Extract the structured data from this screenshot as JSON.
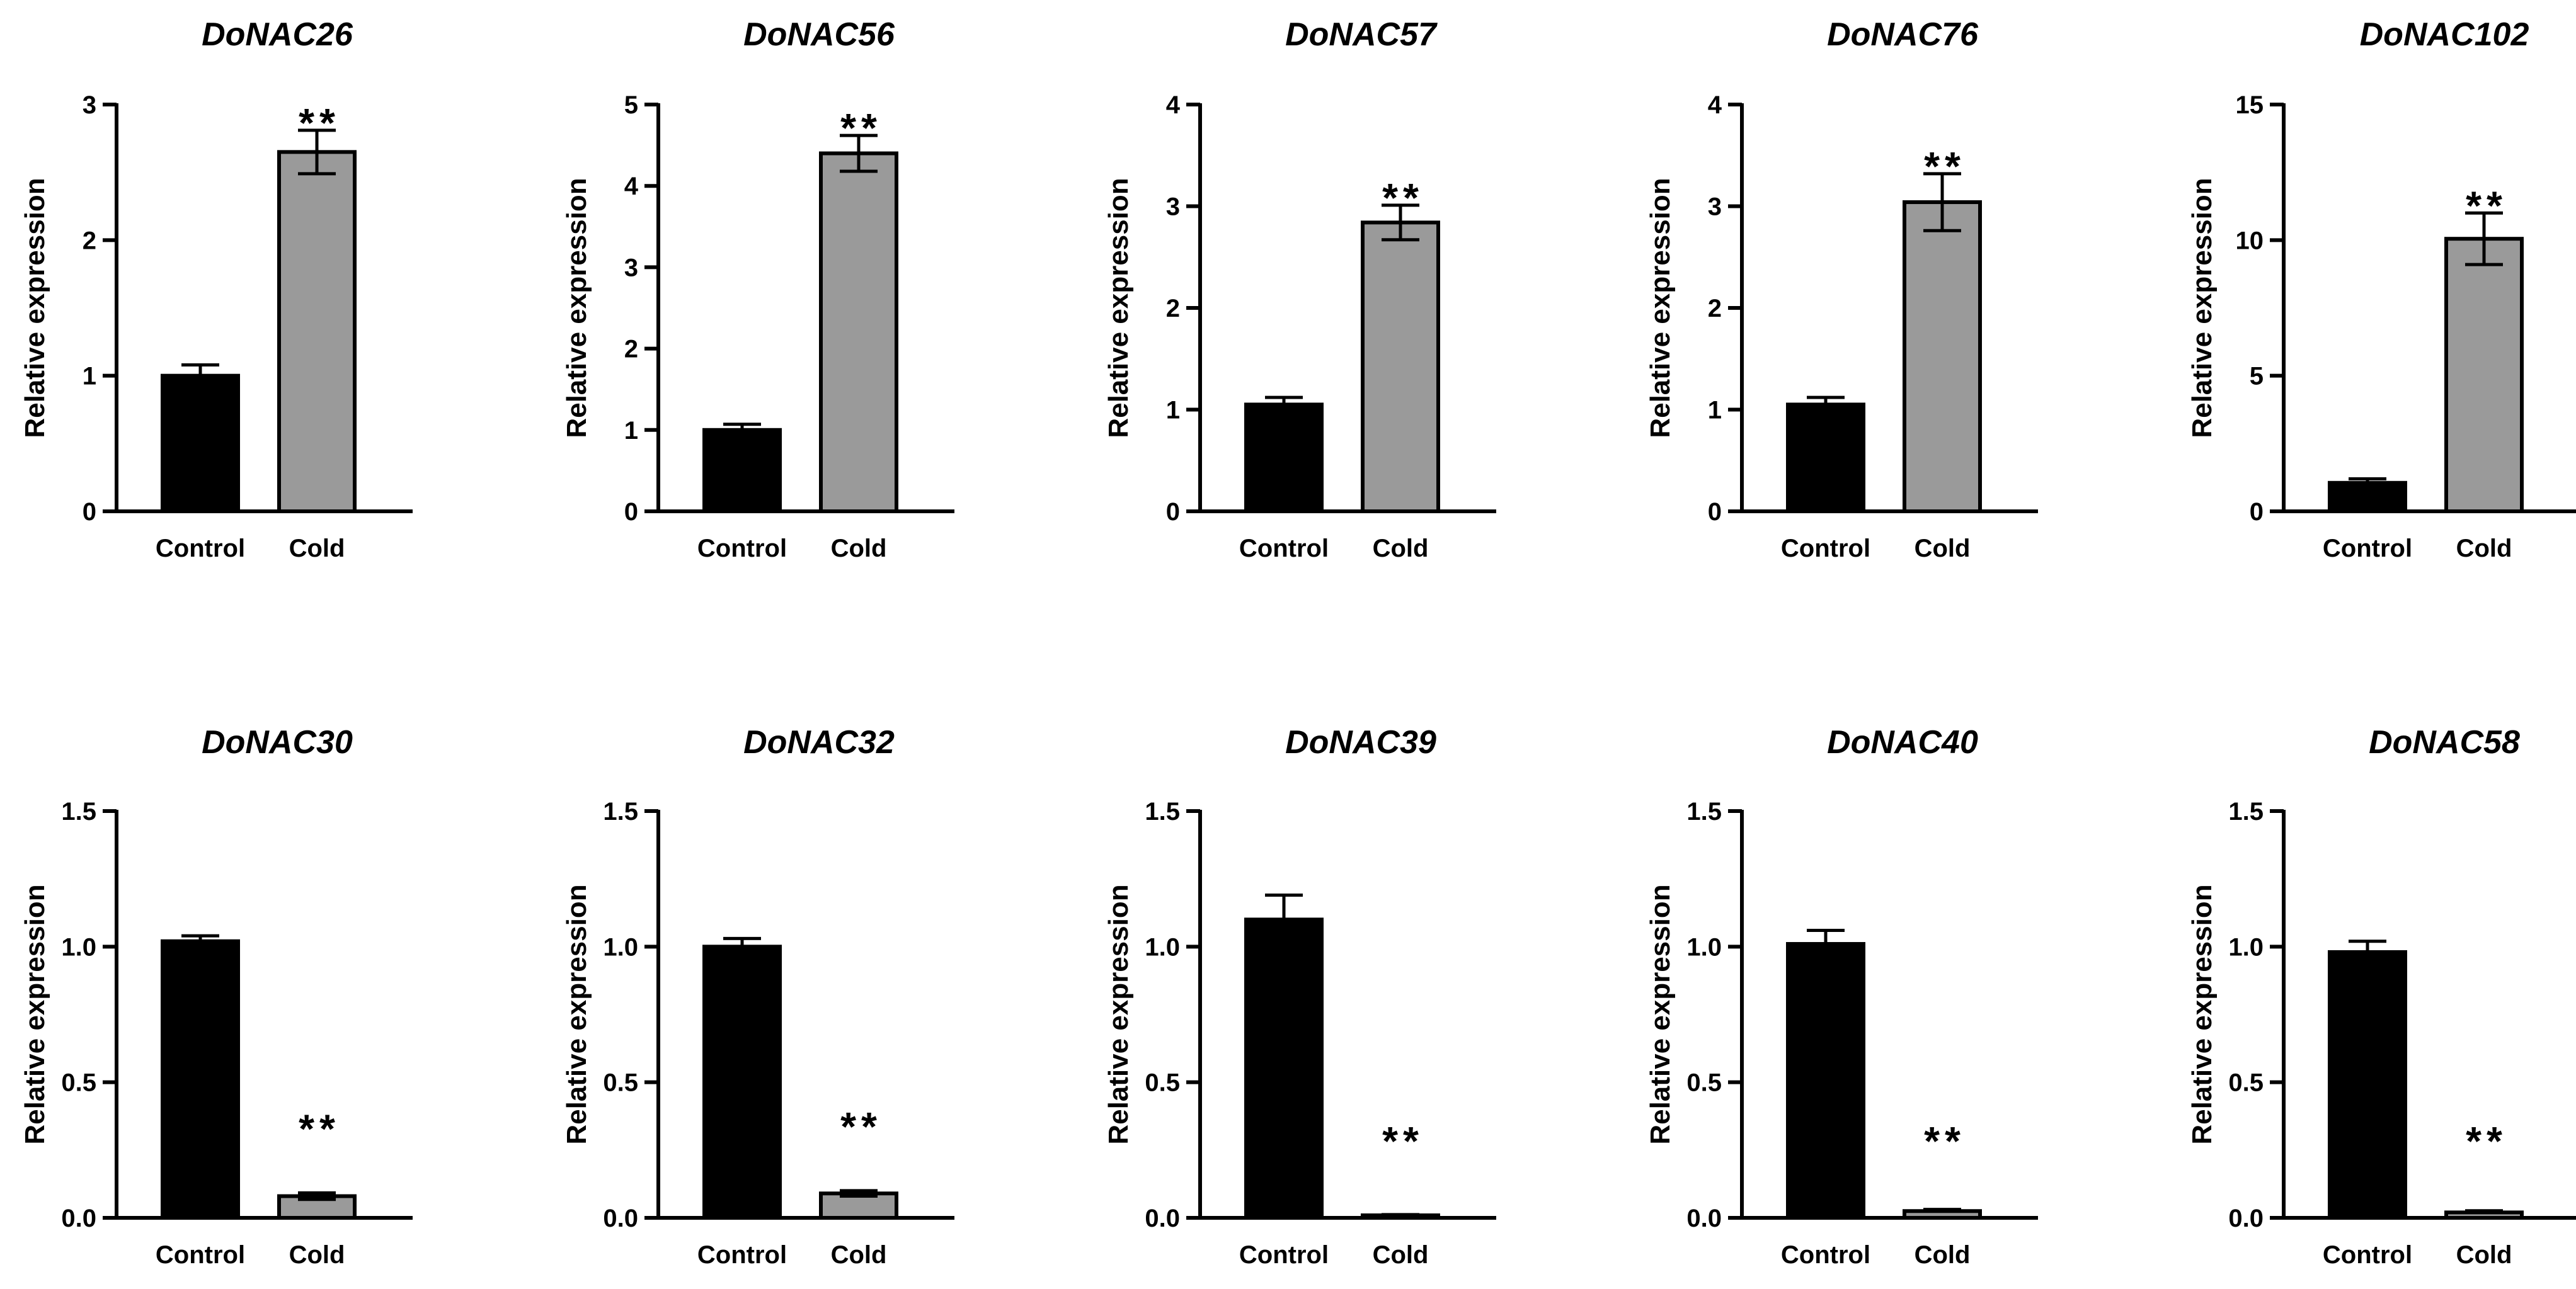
{
  "chart_data": [
    {
      "type": "bar",
      "title": "DoNAC26",
      "ylabel": "Relative expression",
      "categories": [
        "Control",
        "Cold"
      ],
      "values": [
        1.0,
        2.65
      ],
      "errors": [
        0.08,
        0.16
      ],
      "colors": [
        "#000000",
        "#9a9a9a"
      ],
      "ylim": [
        0,
        3
      ],
      "yticks": [
        "0",
        "1",
        "2",
        "3"
      ],
      "significance": "**",
      "sig_on": "Cold"
    },
    {
      "type": "bar",
      "title": "DoNAC56",
      "ylabel": "Relative expression",
      "categories": [
        "Control",
        "Cold"
      ],
      "values": [
        1.0,
        4.4
      ],
      "errors": [
        0.07,
        0.22
      ],
      "colors": [
        "#000000",
        "#9a9a9a"
      ],
      "ylim": [
        0,
        5
      ],
      "yticks": [
        "0",
        "1",
        "2",
        "3",
        "4",
        "5"
      ],
      "significance": "**",
      "sig_on": "Cold"
    },
    {
      "type": "bar",
      "title": "DoNAC57",
      "ylabel": "Relative expression",
      "categories": [
        "Control",
        "Cold"
      ],
      "values": [
        1.05,
        2.84
      ],
      "errors": [
        0.07,
        0.17
      ],
      "colors": [
        "#000000",
        "#9a9a9a"
      ],
      "ylim": [
        0,
        4
      ],
      "yticks": [
        "0",
        "1",
        "2",
        "3",
        "4"
      ],
      "significance": "**",
      "sig_on": "Cold"
    },
    {
      "type": "bar",
      "title": "DoNAC76",
      "ylabel": "Relative expression",
      "categories": [
        "Control",
        "Cold"
      ],
      "values": [
        1.05,
        3.04
      ],
      "errors": [
        0.07,
        0.28
      ],
      "colors": [
        "#000000",
        "#9a9a9a"
      ],
      "ylim": [
        0,
        4
      ],
      "yticks": [
        "0",
        "1",
        "2",
        "3",
        "4"
      ],
      "significance": "**",
      "sig_on": "Cold"
    },
    {
      "type": "bar",
      "title": "DoNAC102",
      "ylabel": "Relative expression",
      "categories": [
        "Control",
        "Cold"
      ],
      "values": [
        1.05,
        10.05
      ],
      "errors": [
        0.15,
        0.95
      ],
      "colors": [
        "#000000",
        "#9a9a9a"
      ],
      "ylim": [
        0,
        15
      ],
      "yticks": [
        "0",
        "5",
        "10",
        "15"
      ],
      "significance": "**",
      "sig_on": "Cold"
    },
    {
      "type": "bar",
      "title": "DoNAC30",
      "ylabel": "Relative expression",
      "categories": [
        "Control",
        "Cold"
      ],
      "values": [
        1.02,
        0.08
      ],
      "errors": [
        0.02,
        0.012
      ],
      "colors": [
        "#000000",
        "#9a9a9a"
      ],
      "ylim": [
        0,
        1.5
      ],
      "yticks": [
        "0.0",
        "0.5",
        "1.0",
        "1.5"
      ],
      "significance": "**",
      "sig_on": "Cold"
    },
    {
      "type": "bar",
      "title": "DoNAC32",
      "ylabel": "Relative expression",
      "categories": [
        "Control",
        "Cold"
      ],
      "values": [
        1.0,
        0.09
      ],
      "errors": [
        0.03,
        0.01
      ],
      "colors": [
        "#000000",
        "#9a9a9a"
      ],
      "ylim": [
        0,
        1.5
      ],
      "yticks": [
        "0.0",
        "0.5",
        "1.0",
        "1.5"
      ],
      "significance": "**",
      "sig_on": "Cold"
    },
    {
      "type": "bar",
      "title": "DoNAC39",
      "ylabel": "Relative expression",
      "categories": [
        "Control",
        "Cold"
      ],
      "values": [
        1.1,
        0.008
      ],
      "errors": [
        0.09,
        0.004
      ],
      "colors": [
        "#000000",
        "#9a9a9a"
      ],
      "ylim": [
        0,
        1.5
      ],
      "yticks": [
        "0.0",
        "0.5",
        "1.0",
        "1.5"
      ],
      "significance": "**",
      "sig_on": "Cold"
    },
    {
      "type": "bar",
      "title": "DoNAC40",
      "ylabel": "Relative expression",
      "categories": [
        "Control",
        "Cold"
      ],
      "values": [
        1.01,
        0.025
      ],
      "errors": [
        0.05,
        0.006
      ],
      "colors": [
        "#000000",
        "#9a9a9a"
      ],
      "ylim": [
        0,
        1.5
      ],
      "yticks": [
        "0.0",
        "0.5",
        "1.0",
        "1.5"
      ],
      "significance": "**",
      "sig_on": "Cold"
    },
    {
      "type": "bar",
      "title": "DoNAC58",
      "ylabel": "Relative expression",
      "categories": [
        "Control",
        "Cold"
      ],
      "values": [
        0.98,
        0.02
      ],
      "errors": [
        0.04,
        0.006
      ],
      "colors": [
        "#000000",
        "#9a9a9a"
      ],
      "ylim": [
        0,
        1.5
      ],
      "yticks": [
        "0.0",
        "0.5",
        "1.0",
        "1.5"
      ],
      "significance": "**",
      "sig_on": "Cold"
    }
  ]
}
